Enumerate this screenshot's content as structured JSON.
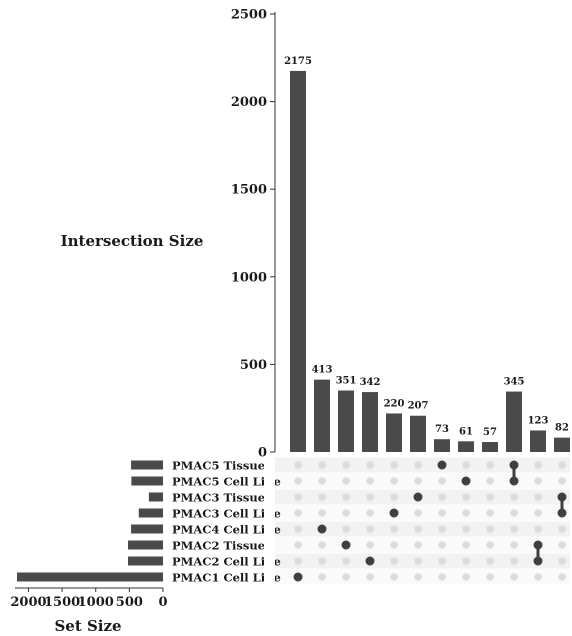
{
  "chart_data": {
    "type": "bar",
    "title": "",
    "ylabel": "Intersection Size",
    "xlabel": "Set Size",
    "ylim": [
      0,
      2500
    ],
    "yticks": [
      "0",
      "500",
      "1000",
      "1500",
      "2000",
      "2500"
    ],
    "set_size_ticks": [
      "2000",
      "1500",
      "1000",
      "500",
      "0"
    ],
    "set_size_range": [
      0,
      2200
    ],
    "sets": [
      {
        "label": "PMAC5 Tissue",
        "size": 475
      },
      {
        "label": "PMAC5 Cell Line",
        "size": 470
      },
      {
        "label": "PMAC3 Tissue",
        "size": 210
      },
      {
        "label": "PMAC3 Cell Line",
        "size": 360
      },
      {
        "label": "PMAC4 Cell Line",
        "size": 475
      },
      {
        "label": "PMAC2 Tissue",
        "size": 520
      },
      {
        "label": "PMAC2 Cell Line",
        "size": 520
      },
      {
        "label": "PMAC1 Cell Line",
        "size": 2170
      }
    ],
    "intersections": [
      {
        "value": 2175,
        "label": "2175",
        "sets": [
          7
        ]
      },
      {
        "value": 413,
        "label": "413",
        "sets": [
          4
        ]
      },
      {
        "value": 351,
        "label": "351",
        "sets": [
          5
        ]
      },
      {
        "value": 342,
        "label": "342",
        "sets": [
          6
        ]
      },
      {
        "value": 220,
        "label": "220",
        "sets": [
          3
        ]
      },
      {
        "value": 207,
        "label": "207",
        "sets": [
          2
        ]
      },
      {
        "value": 73,
        "label": "73",
        "sets": [
          0
        ]
      },
      {
        "value": 61,
        "label": "61",
        "sets": [
          1
        ]
      },
      {
        "value": 57,
        "label": "57",
        "sets": []
      },
      {
        "value": 345,
        "label": "345",
        "sets": [
          0,
          1
        ]
      },
      {
        "value": 123,
        "label": "123",
        "sets": [
          5,
          6
        ]
      },
      {
        "value": 82,
        "label": "82",
        "sets": [
          2,
          3
        ]
      }
    ],
    "colors": {
      "bar": "#4a4a4a",
      "dot_active": "#3f3f3f",
      "dot_inactive": "#dcdcdc",
      "stripe": "#f2f2f2"
    }
  }
}
